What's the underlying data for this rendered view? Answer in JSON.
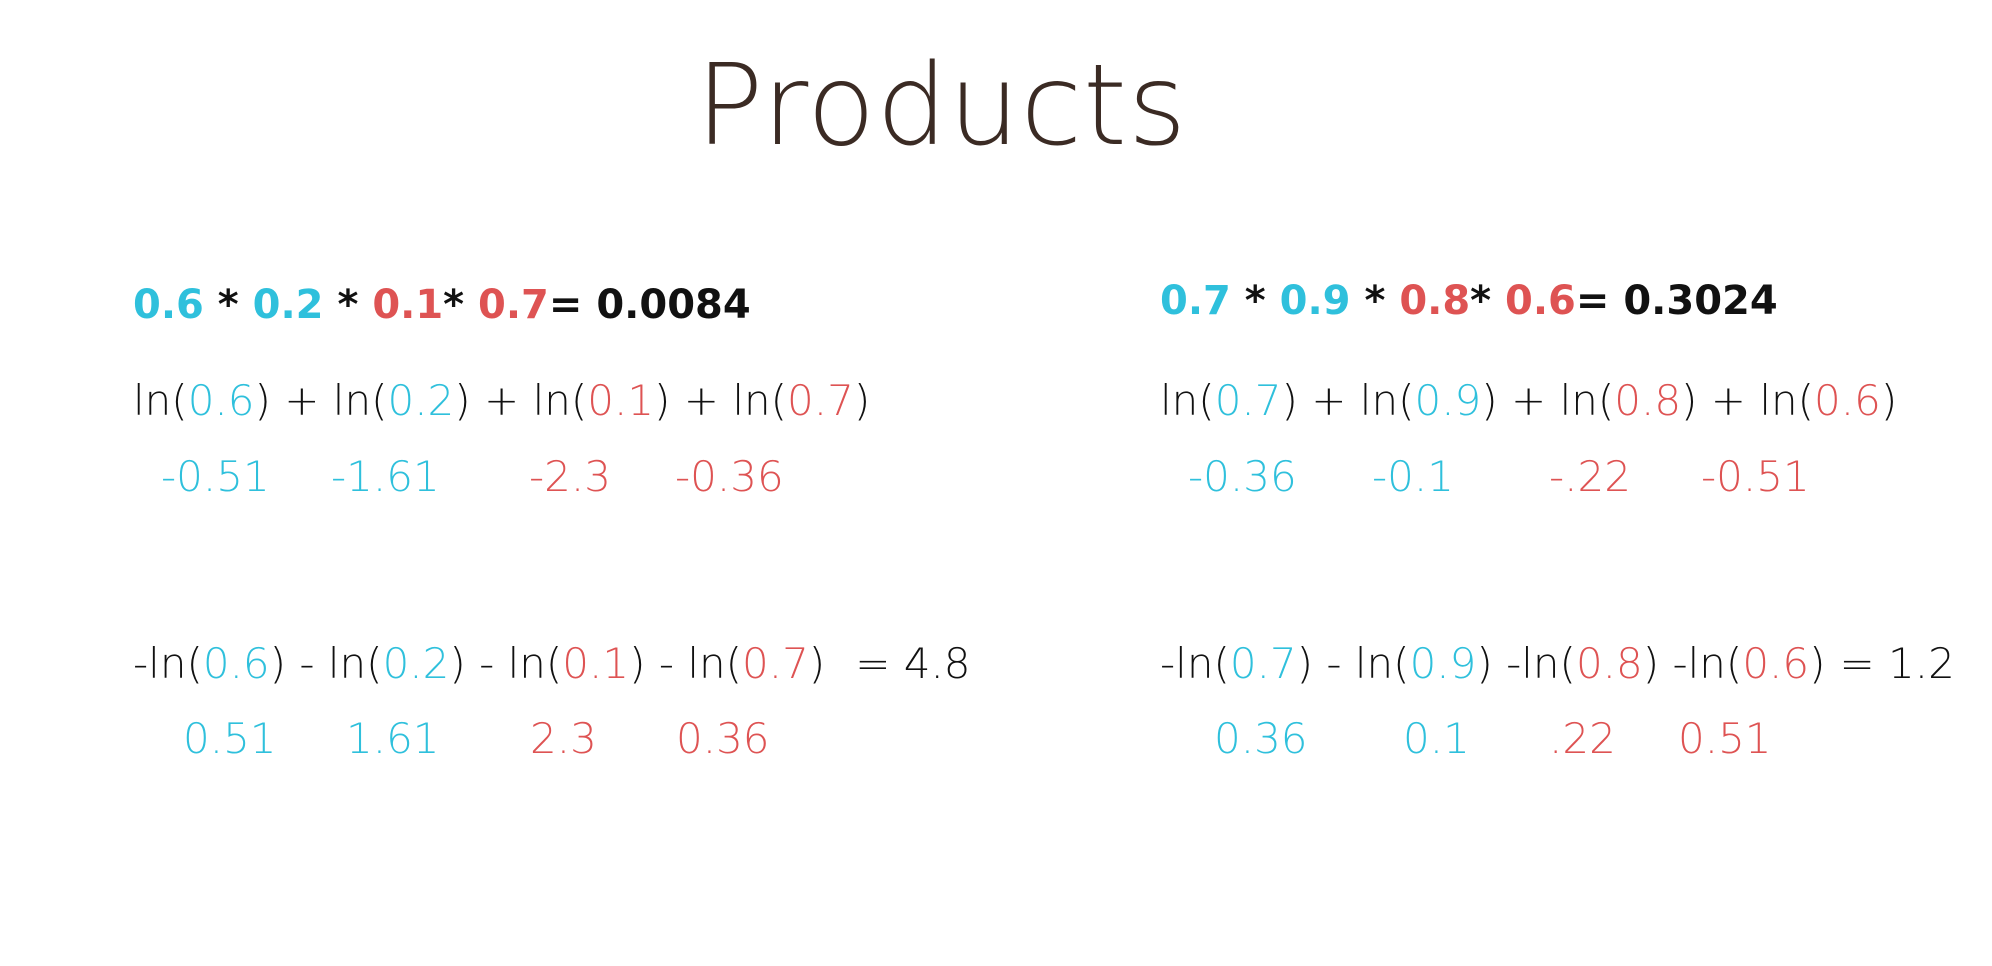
{
  "title": "Products",
  "panels": [
    {
      "product": {
        "terms": [
          "0.6",
          "0.2",
          "0.1",
          "0.7"
        ],
        "mult": "*",
        "result": "= 0.0084"
      },
      "log_sum": {
        "fn": "ln(",
        "close": ")",
        "plus": " + ",
        "terms": [
          "0.6",
          "0.2",
          "0.1",
          "0.7"
        ]
      },
      "log_values": [
        "-0.51",
        "-1.61",
        "-2.3",
        "-0.36"
      ],
      "neg_log_sum": {
        "prefix": "-ln(",
        "sep": [
          ") - ln(",
          ") - ln(",
          ") - ln("
        ],
        "close": ")",
        "terms": [
          "0.6",
          "0.2",
          "0.1",
          "0.7"
        ],
        "result": "= 4.8"
      },
      "neg_log_values": [
        "0.51",
        "1.61",
        "2.3",
        "0.36"
      ]
    },
    {
      "product": {
        "terms": [
          "0.7",
          "0.9",
          "0.8",
          "0.6"
        ],
        "mult": "*",
        "result": "= 0.3024"
      },
      "log_sum": {
        "fn": "ln(",
        "close": ")",
        "plus": " + ",
        "terms": [
          "0.7",
          "0.9",
          "0.8",
          "0.6"
        ]
      },
      "log_values": [
        "-0.36",
        "-0.1",
        "-.22",
        "-0.51"
      ],
      "neg_log_sum": {
        "prefix": "-ln(",
        "sep": [
          ") - ln(",
          ") -ln(",
          ") -ln("
        ],
        "close": ")",
        "terms": [
          "0.7",
          "0.9",
          "0.8",
          "0.6"
        ],
        "result": "= 1.2"
      },
      "neg_log_values": [
        "0.36",
        "0.1",
        ".22",
        "0.51"
      ]
    }
  ],
  "colors": {
    "blue": "#2fc0dc",
    "red": "#de5353",
    "title": "#3b2b24"
  }
}
